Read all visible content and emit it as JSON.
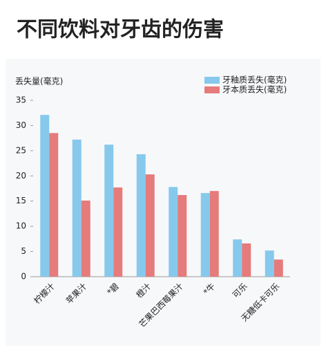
{
  "chart_data": {
    "type": "bar",
    "title": "不同饮料对牙齿的伤害",
    "y_label": "丢失量(毫克)",
    "categories": [
      "柠檬汁",
      "苹果汁",
      "*碧",
      "橙汁",
      "芒果巴西莓果汁",
      "*牛",
      "可乐",
      "无糖低卡可乐"
    ],
    "series": [
      {
        "name": "牙釉质丢失(毫克)",
        "color": "#86c9ec",
        "values": [
          32.1,
          27.2,
          26.2,
          24.3,
          17.8,
          16.6,
          7.4,
          5.2
        ]
      },
      {
        "name": "牙本质丢失(毫克)",
        "color": "#e57b7b",
        "values": [
          28.5,
          15.1,
          17.7,
          20.3,
          16.2,
          17.0,
          6.6,
          3.4
        ]
      }
    ],
    "ylim": [
      0,
      35
    ],
    "yticks": [
      0,
      5,
      10,
      15,
      20,
      25,
      30,
      35
    ],
    "legend": "top-right"
  }
}
